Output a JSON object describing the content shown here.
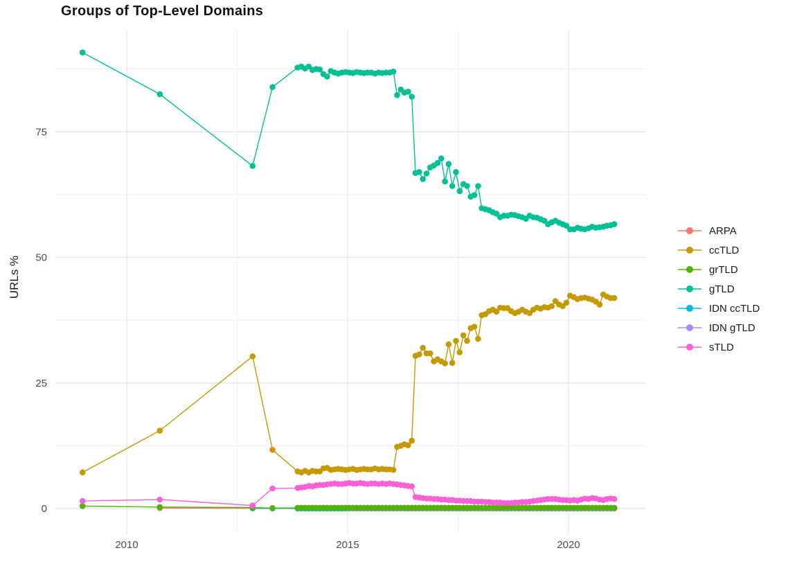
{
  "chart_data": {
    "type": "line",
    "title": "Groups of Top-Level Domains",
    "xlabel": "",
    "ylabel": "URLs %",
    "background": "#ffffff",
    "grid": "major+minor",
    "grid_major_color": "#e3e3e3",
    "grid_minor_color": "#ededed",
    "tick_text_color": "#4d4d4d",
    "legend_position": "right",
    "xlim": [
      2008.4,
      2021.7
    ],
    "ylim": [
      -4.6,
      95.6
    ],
    "x_ticks": [
      {
        "label": "2010",
        "year": 2010
      },
      {
        "label": "2015",
        "year": 2015
      },
      {
        "label": "2020",
        "year": 2020
      }
    ],
    "x_minor": [
      2012.5,
      2017.5
    ],
    "y_ticks": [
      {
        "label": "0",
        "value": 0
      },
      {
        "label": "25",
        "value": 25
      },
      {
        "label": "50",
        "value": 50
      },
      {
        "label": "75",
        "value": 75
      }
    ],
    "y_minor": [
      12.5,
      37.5,
      62.5,
      87.5
    ],
    "point_interval": "monthly",
    "draw_order": [
      "ARPA",
      "IDN ccTLD",
      "IDN gTLD",
      "ccTLD",
      "gTLD",
      "grTLD",
      "sTLD"
    ],
    "series": [
      {
        "name": "ARPA",
        "color": "#F8766D",
        "early": [
          [
            2010.75,
            0.1
          ],
          [
            2012.85,
            0.05
          ]
        ],
        "monthly_start": 2013.87,
        "monthly_constant": 0.03,
        "monthly_count": 87
      },
      {
        "name": "ccTLD",
        "color": "#C49A00",
        "early": [
          [
            2009.0,
            7.2
          ],
          [
            2010.75,
            15.5
          ],
          [
            2012.85,
            30.3
          ],
          [
            2013.3,
            11.7
          ]
        ],
        "monthly_start": 2013.87,
        "monthly_values": [
          7.4,
          7.2,
          7.5,
          7.2,
          7.5,
          7.4,
          7.4,
          8.0,
          8.1,
          7.7,
          7.8,
          7.9,
          7.8,
          7.7,
          7.8,
          7.9,
          7.7,
          7.8,
          7.9,
          7.8,
          7.8,
          8.0,
          7.8,
          7.9,
          7.8,
          7.8,
          7.7,
          12.3,
          12.5,
          12.8,
          12.6,
          13.5,
          30.4,
          30.7,
          32.0,
          30.9,
          30.9,
          29.3,
          29.7,
          29.3,
          28.9,
          32.7,
          29.0,
          33.4,
          31.1,
          34.5,
          33.4,
          35.9,
          36.2,
          33.8,
          38.5,
          38.7,
          39.3,
          39.6,
          39.2,
          40.0,
          39.9,
          39.9,
          39.3,
          38.9,
          39.2,
          39.6,
          39.2,
          38.9,
          39.6,
          40.0,
          39.8,
          40.1,
          40.0,
          40.3,
          41.3,
          40.6,
          40.3,
          41.0,
          42.4,
          42.1,
          41.7,
          41.9,
          42.0,
          41.8,
          41.6,
          41.2,
          40.6,
          42.6,
          42.2,
          41.9,
          41.9
        ]
      },
      {
        "name": "grTLD",
        "color": "#53B400",
        "early": [
          [
            2009.0,
            0.5
          ],
          [
            2010.75,
            0.3
          ],
          [
            2012.85,
            0.2
          ],
          [
            2013.3,
            0.1
          ]
        ],
        "monthly_start": 2013.87,
        "monthly_constant": 0.15,
        "monthly_count": 87
      },
      {
        "name": "gTLD",
        "color": "#00C094",
        "early": [
          [
            2009.0,
            90.8
          ],
          [
            2010.75,
            82.5
          ],
          [
            2012.85,
            68.2
          ],
          [
            2013.3,
            83.9
          ]
        ],
        "monthly_start": 2013.87,
        "monthly_values": [
          87.8,
          88.0,
          87.6,
          88.0,
          87.3,
          87.5,
          87.4,
          86.5,
          86.0,
          87.1,
          86.8,
          86.6,
          86.8,
          86.9,
          86.8,
          86.7,
          86.9,
          86.8,
          86.7,
          86.8,
          86.8,
          86.6,
          86.8,
          86.7,
          86.8,
          86.8,
          87.0,
          82.3,
          83.4,
          82.8,
          83.0,
          82.0,
          66.8,
          67.0,
          65.6,
          66.7,
          67.9,
          68.3,
          68.8,
          69.7,
          65.1,
          68.6,
          64.2,
          67.0,
          63.2,
          64.6,
          64.2,
          62.1,
          62.4,
          64.2,
          59.8,
          59.6,
          59.4,
          59.0,
          58.7,
          58.0,
          58.3,
          58.3,
          58.5,
          58.4,
          58.2,
          58.0,
          57.7,
          58.3,
          58.0,
          57.9,
          57.6,
          57.3,
          56.6,
          57.0,
          57.3,
          56.9,
          56.6,
          56.3,
          55.6,
          55.6,
          55.9,
          55.7,
          55.6,
          55.8,
          56.1,
          55.9,
          56.0,
          56.1,
          56.3,
          56.4,
          56.6
        ]
      },
      {
        "name": "IDN ccTLD",
        "color": "#00B6EB",
        "early": [
          [
            2012.85,
            0.05
          ],
          [
            2013.3,
            0.03
          ]
        ],
        "monthly_start": 2013.87,
        "monthly_constant": 0.02,
        "monthly_count": 87
      },
      {
        "name": "IDN gTLD",
        "color": "#A58AFF",
        "early": [],
        "monthly_start": 2015.04,
        "monthly_constant": 0.0,
        "monthly_count": 73
      },
      {
        "name": "sTLD",
        "color": "#FB61D7",
        "early": [
          [
            2009.0,
            1.5
          ],
          [
            2010.75,
            1.8
          ],
          [
            2012.85,
            0.6
          ],
          [
            2013.3,
            4.0
          ]
        ],
        "monthly_start": 2013.87,
        "monthly_values": [
          4.1,
          4.2,
          4.3,
          4.5,
          4.4,
          4.6,
          4.7,
          4.7,
          4.8,
          4.9,
          5.0,
          4.9,
          4.9,
          5.0,
          5.1,
          5.0,
          5.0,
          5.1,
          5.0,
          4.9,
          5.0,
          5.0,
          4.9,
          5.0,
          4.9,
          5.0,
          4.9,
          4.8,
          4.7,
          4.6,
          4.5,
          4.4,
          2.3,
          2.2,
          2.1,
          2.0,
          2.0,
          1.9,
          1.9,
          1.8,
          1.8,
          1.7,
          1.7,
          1.6,
          1.6,
          1.5,
          1.5,
          1.5,
          1.4,
          1.4,
          1.4,
          1.3,
          1.3,
          1.2,
          1.2,
          1.2,
          1.1,
          1.1,
          1.1,
          1.2,
          1.2,
          1.3,
          1.3,
          1.4,
          1.5,
          1.6,
          1.7,
          1.8,
          1.9,
          1.9,
          1.9,
          1.8,
          1.7,
          1.7,
          1.6,
          1.7,
          1.6,
          1.8,
          2.0,
          1.9,
          2.1,
          2.0,
          1.8,
          1.7,
          1.9,
          2.0,
          1.9
        ]
      }
    ]
  }
}
